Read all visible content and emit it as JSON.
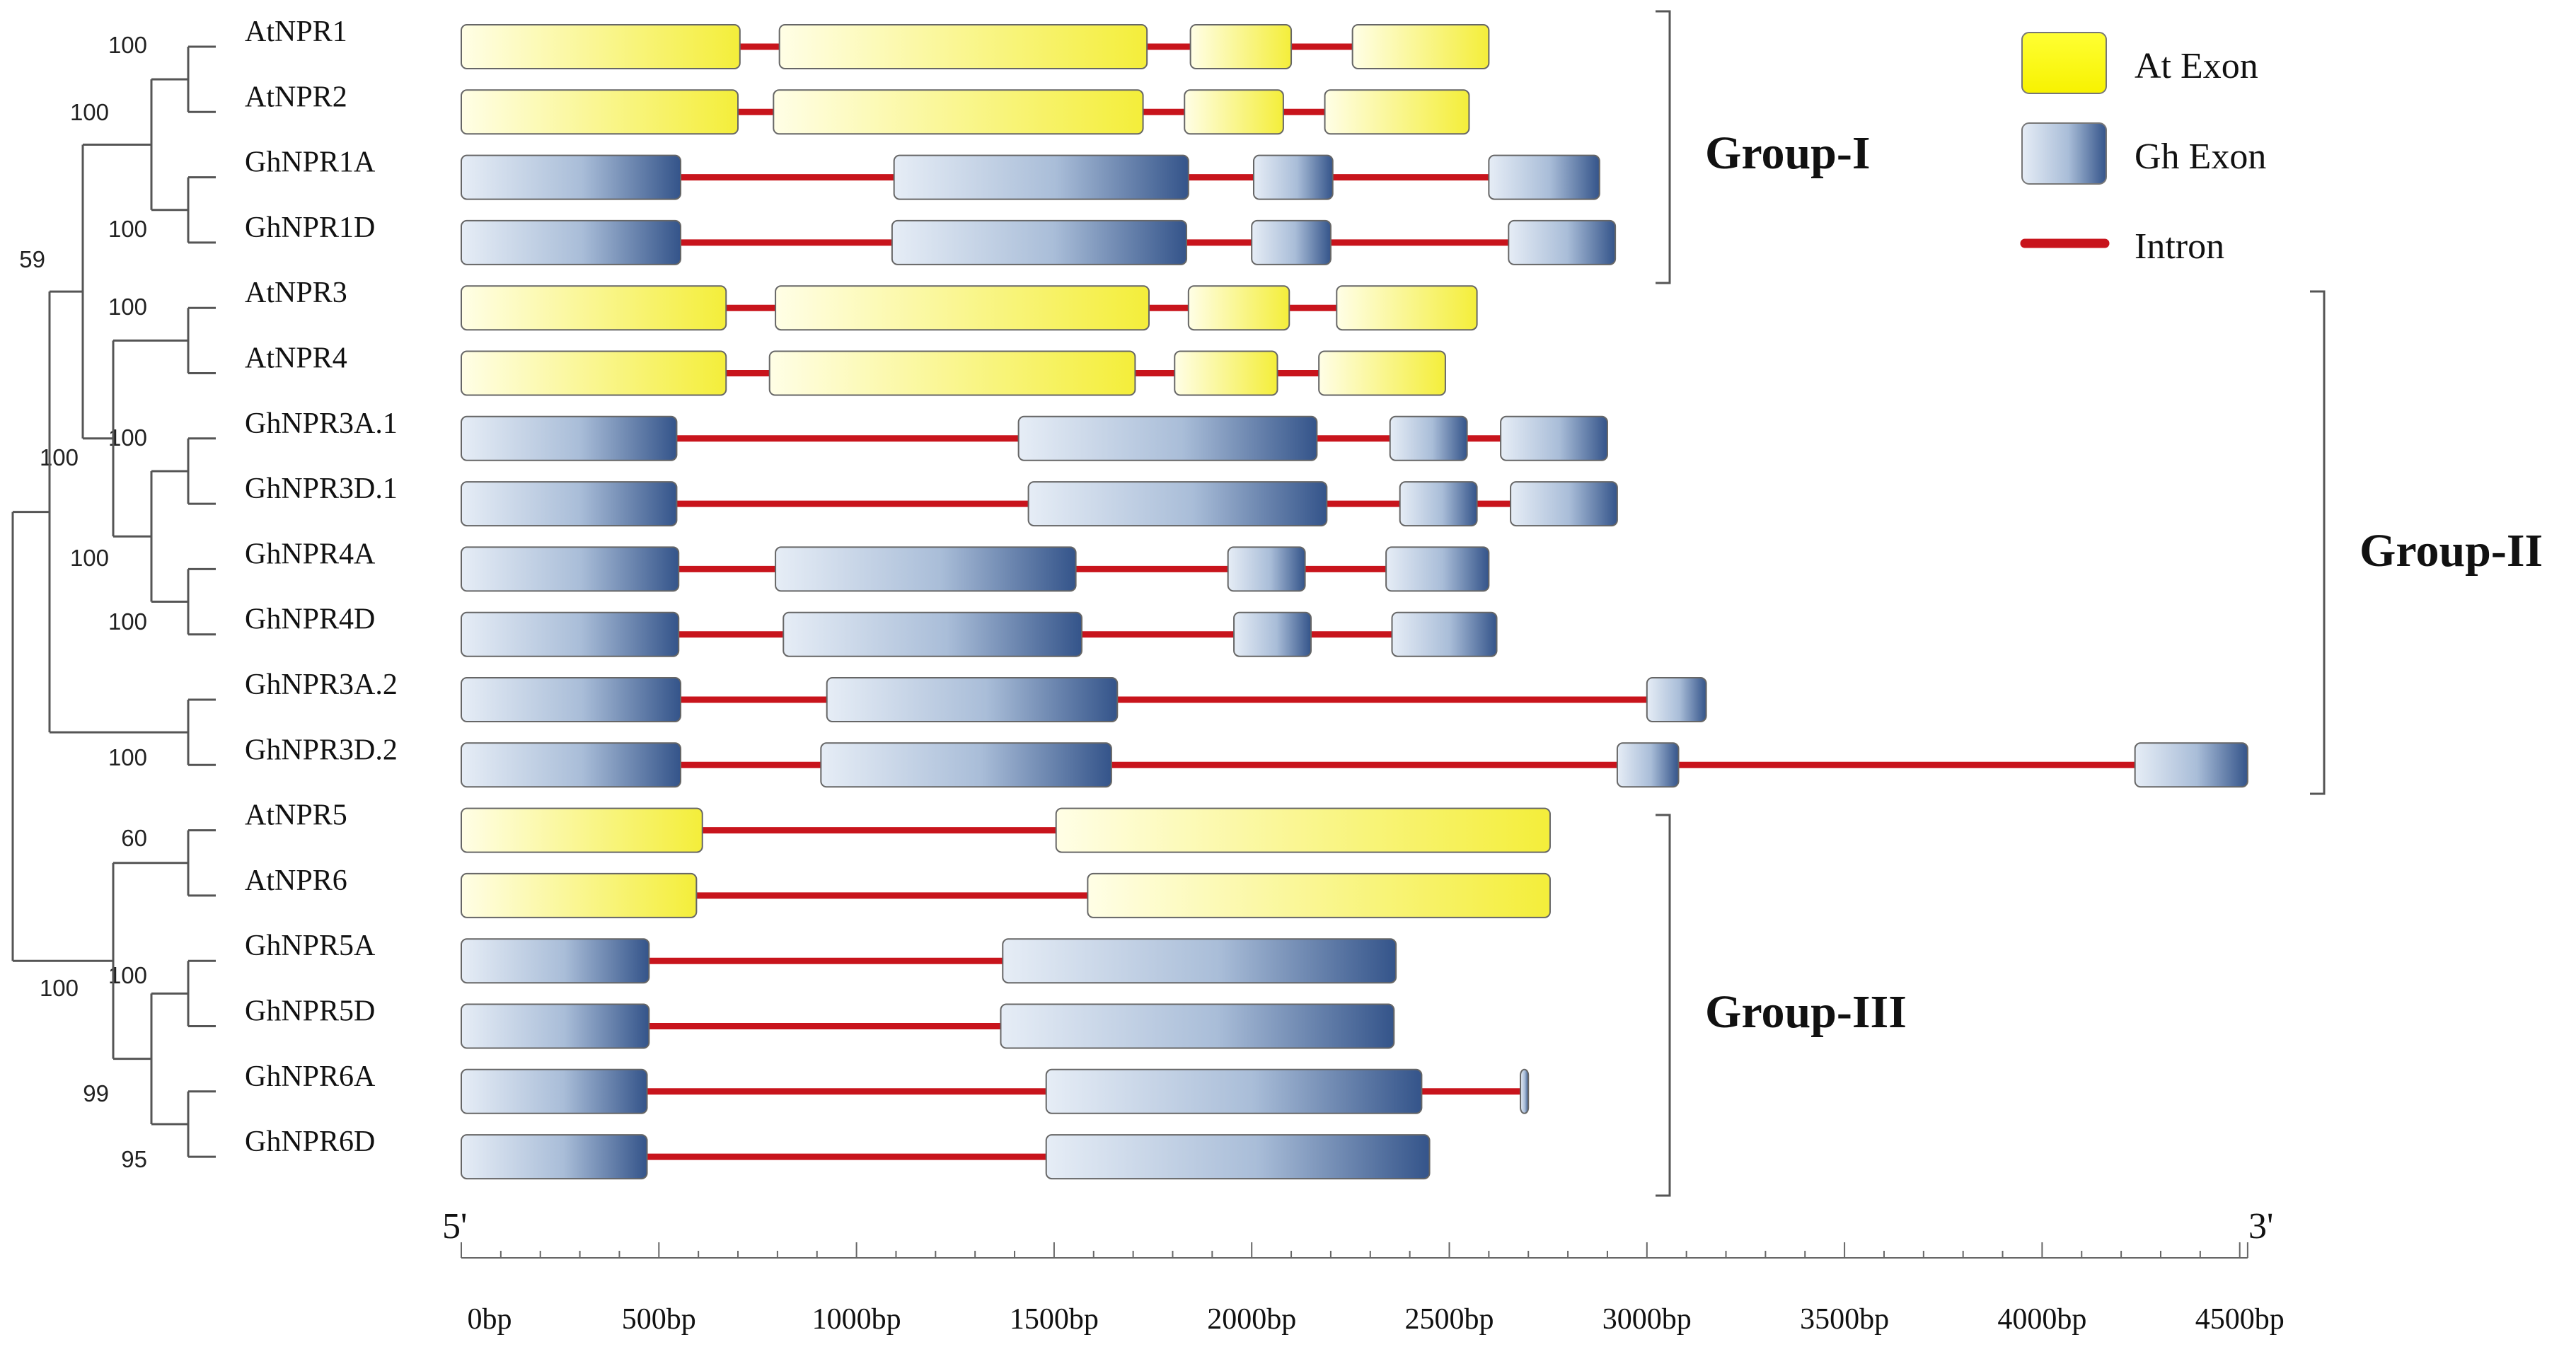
{
  "legend": {
    "at_exon": "At Exon",
    "gh_exon": "Gh Exon",
    "intron": "Intron"
  },
  "groups": [
    {
      "name": "Group-I",
      "from": 0,
      "to": 3
    },
    {
      "name": "Group-II",
      "from": 4,
      "to": 11
    },
    {
      "name": "Group-III",
      "from": 12,
      "to": 17
    }
  ],
  "axis": {
    "start_label": "5'",
    "end_label": "3'",
    "ticks": [
      "0bp",
      "500bp",
      "1000bp",
      "1500bp",
      "2000bp",
      "2500bp",
      "3000bp",
      "3500bp",
      "4000bp",
      "4500bp"
    ],
    "tick_values": [
      0,
      500,
      1000,
      1500,
      2000,
      2500,
      3000,
      3500,
      4000,
      4500
    ],
    "max_bp": 4520
  },
  "colors": {
    "intron": "#c8141c",
    "at_light": "#fffde0",
    "at_dark": "#f5f04a",
    "gh_light": "#e4ecf5",
    "gh_dark": "#3a5a8c",
    "tree": "#555555"
  },
  "genes": [
    {
      "name": "AtNPR1",
      "species": "At",
      "length": 2600,
      "exons": [
        [
          0,
          705
        ],
        [
          805,
          1735
        ],
        [
          1845,
          2100
        ],
        [
          2255,
          2600
        ]
      ]
    },
    {
      "name": "AtNPR2",
      "species": "At",
      "length": 2550,
      "exons": [
        [
          0,
          700
        ],
        [
          790,
          1725
        ],
        [
          1830,
          2080
        ],
        [
          2185,
          2550
        ]
      ]
    },
    {
      "name": "GhNPR1A",
      "species": "Gh",
      "length": 2880,
      "exons": [
        [
          0,
          555
        ],
        [
          1095,
          1840
        ],
        [
          2005,
          2205
        ],
        [
          2600,
          2880
        ]
      ]
    },
    {
      "name": "GhNPR1D",
      "species": "Gh",
      "length": 2920,
      "exons": [
        [
          0,
          555
        ],
        [
          1090,
          1835
        ],
        [
          2000,
          2200
        ],
        [
          2650,
          2920
        ]
      ]
    },
    {
      "name": "AtNPR3",
      "species": "At",
      "length": 2570,
      "exons": [
        [
          0,
          670
        ],
        [
          795,
          1740
        ],
        [
          1840,
          2095
        ],
        [
          2215,
          2570
        ]
      ]
    },
    {
      "name": "AtNPR4",
      "species": "At",
      "length": 2490,
      "exons": [
        [
          0,
          670
        ],
        [
          780,
          1705
        ],
        [
          1805,
          2065
        ],
        [
          2170,
          2490
        ]
      ]
    },
    {
      "name": "GhNPR3A.1",
      "species": "Gh",
      "length": 2900,
      "exons": [
        [
          0,
          545
        ],
        [
          1410,
          2165
        ],
        [
          2350,
          2545
        ],
        [
          2630,
          2900
        ]
      ]
    },
    {
      "name": "GhNPR3D.1",
      "species": "Gh",
      "length": 2925,
      "exons": [
        [
          0,
          545
        ],
        [
          1435,
          2190
        ],
        [
          2375,
          2570
        ],
        [
          2655,
          2925
        ]
      ]
    },
    {
      "name": "GhNPR4A",
      "species": "Gh",
      "length": 2600,
      "exons": [
        [
          0,
          550
        ],
        [
          795,
          1555
        ],
        [
          1940,
          2135
        ],
        [
          2340,
          2600
        ]
      ]
    },
    {
      "name": "GhNPR4D",
      "species": "Gh",
      "length": 2620,
      "exons": [
        [
          0,
          550
        ],
        [
          815,
          1570
        ],
        [
          1955,
          2150
        ],
        [
          2355,
          2620
        ]
      ]
    },
    {
      "name": "GhNPR3A.2",
      "species": "Gh",
      "length": 3150,
      "exons": [
        [
          0,
          555
        ],
        [
          925,
          1660
        ],
        [
          3000,
          3150
        ]
      ]
    },
    {
      "name": "GhNPR3D.2",
      "species": "Gh",
      "length": 4520,
      "exons": [
        [
          0,
          555
        ],
        [
          910,
          1645
        ],
        [
          2925,
          3080
        ],
        [
          4235,
          4520
        ]
      ]
    },
    {
      "name": "AtNPR5",
      "species": "At",
      "length": 2755,
      "exons": [
        [
          0,
          610
        ],
        [
          1505,
          2755
        ]
      ]
    },
    {
      "name": "AtNPR6",
      "species": "At",
      "length": 2755,
      "exons": [
        [
          0,
          595
        ],
        [
          1585,
          2755
        ]
      ]
    },
    {
      "name": "GhNPR5A",
      "species": "Gh",
      "length": 2365,
      "exons": [
        [
          0,
          475
        ],
        [
          1370,
          2365
        ]
      ]
    },
    {
      "name": "GhNPR5D",
      "species": "Gh",
      "length": 2360,
      "exons": [
        [
          0,
          475
        ],
        [
          1365,
          2360
        ]
      ]
    },
    {
      "name": "GhNPR6A",
      "species": "Gh",
      "length": 2700,
      "exons": [
        [
          0,
          470
        ],
        [
          1480,
          2430
        ],
        [
          2680,
          2700
        ]
      ]
    },
    {
      "name": "GhNPR6D",
      "species": "Gh",
      "length": 2450,
      "exons": [
        [
          0,
          470
        ],
        [
          1480,
          2450
        ]
      ]
    }
  ],
  "tree": {
    "clades": [
      {
        "id": "n12",
        "children": [
          0,
          1
        ],
        "support": "100"
      },
      {
        "id": "n34",
        "children": [
          2,
          3
        ],
        "support": "100"
      },
      {
        "id": "nI",
        "children": [
          "n12",
          "n34"
        ],
        "support": "100"
      },
      {
        "id": "n56",
        "children": [
          4,
          5
        ],
        "support": "100"
      },
      {
        "id": "n78",
        "children": [
          6,
          7
        ],
        "support": "100"
      },
      {
        "id": "n910",
        "children": [
          8,
          9
        ],
        "support": "100"
      },
      {
        "id": "n7to10",
        "children": [
          "n78",
          "n910"
        ],
        "support": "100"
      },
      {
        "id": "n5to10",
        "children": [
          "n56",
          "n7to10"
        ],
        "support": "100"
      },
      {
        "id": "nItoII",
        "children": [
          "nI",
          "n5to10"
        ],
        "support": "59"
      },
      {
        "id": "n1112",
        "children": [
          10,
          11
        ],
        "support": "100"
      },
      {
        "id": "nTop",
        "children": [
          "nItoII",
          "n1112"
        ],
        "support": ""
      },
      {
        "id": "n1314",
        "children": [
          12,
          13
        ],
        "support": "60"
      },
      {
        "id": "n1516",
        "children": [
          14,
          15
        ],
        "support": "100"
      },
      {
        "id": "n1718",
        "children": [
          16,
          17
        ],
        "support": "95"
      },
      {
        "id": "n15to18",
        "children": [
          "n1516",
          "n1718"
        ],
        "support": "99"
      },
      {
        "id": "nIII",
        "children": [
          "n1314",
          "n15to18"
        ],
        "support": "100"
      },
      {
        "id": "root",
        "children": [
          "nTop",
          "nIII"
        ],
        "support": ""
      }
    ]
  }
}
